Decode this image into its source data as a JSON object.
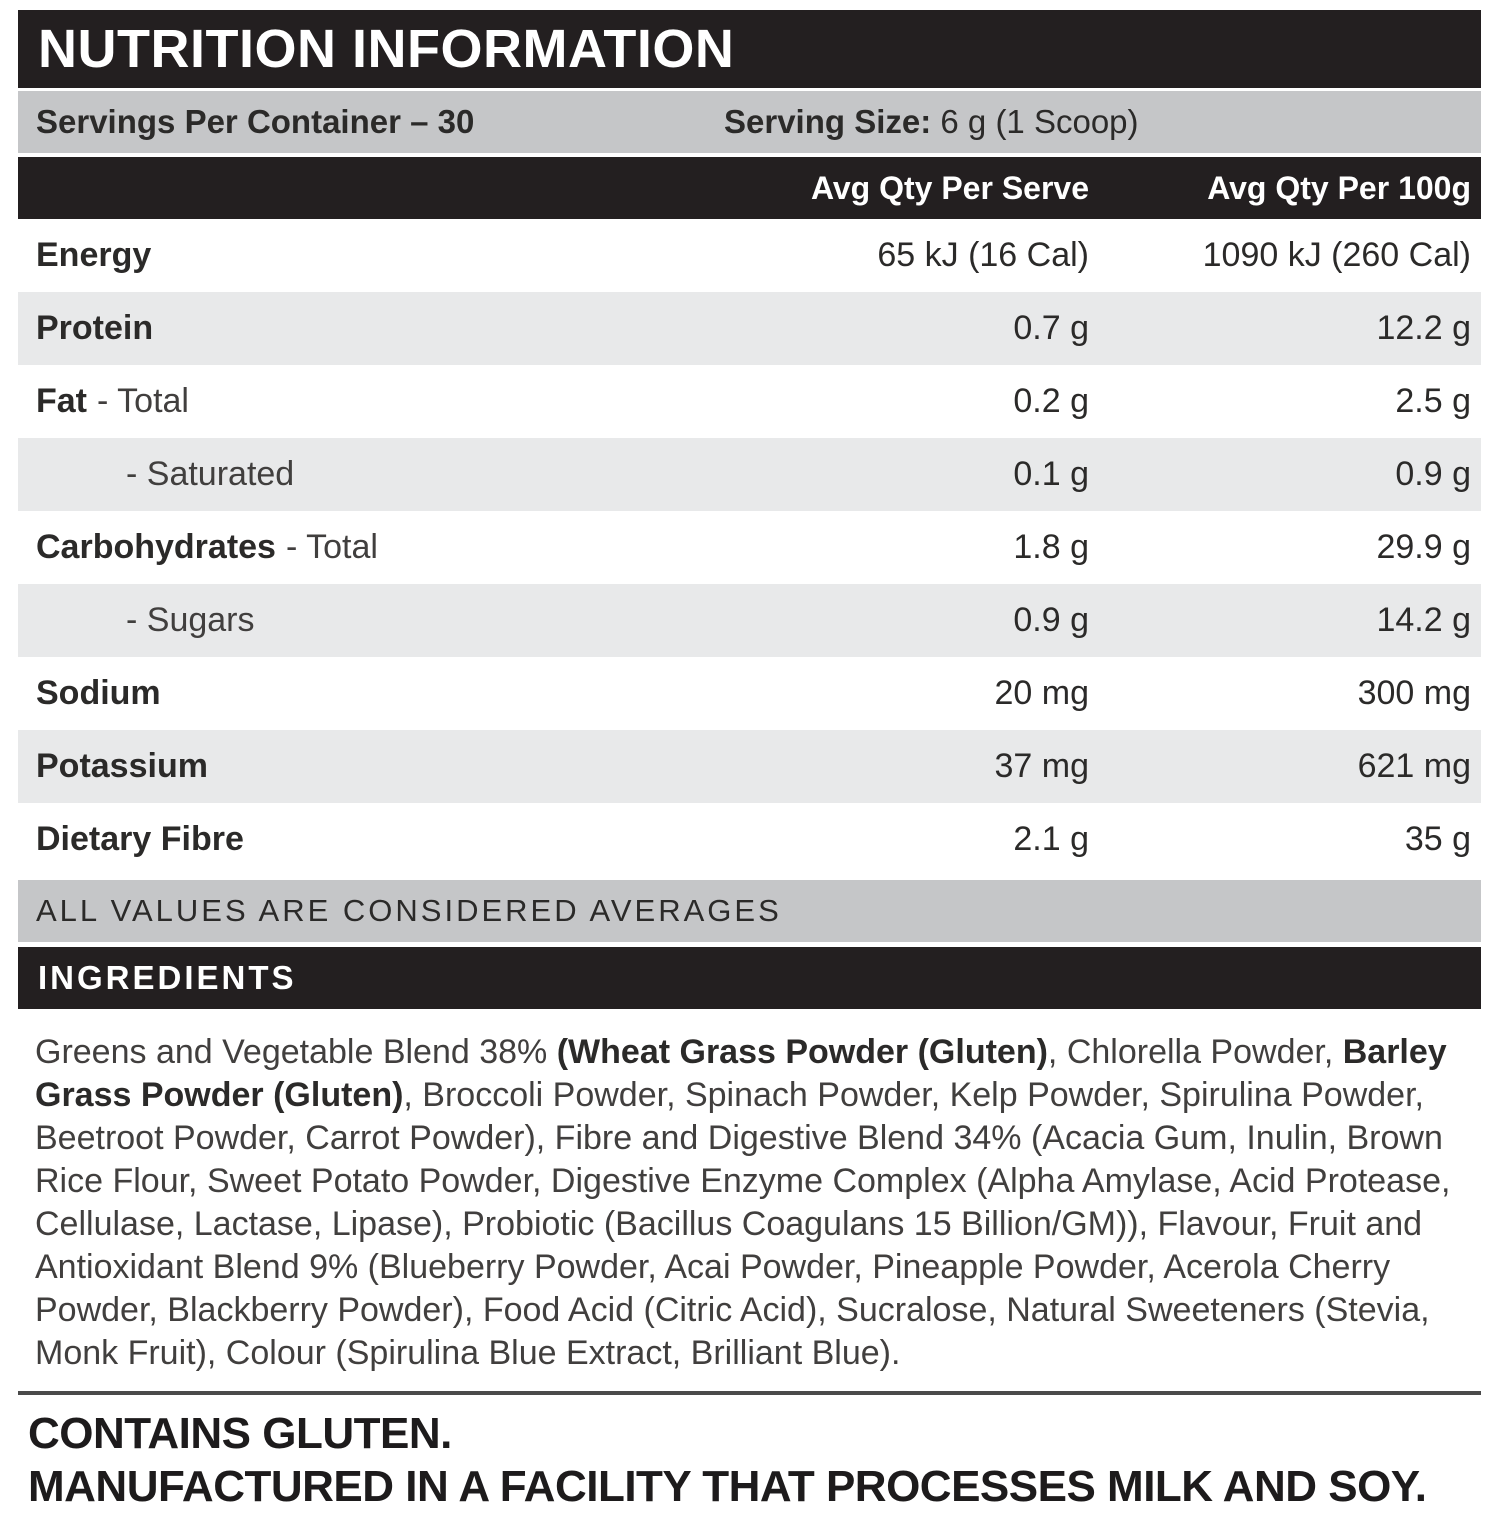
{
  "header": {
    "title": "NUTRITION INFORMATION"
  },
  "serving": {
    "servings_per_container": "Servings Per Container – 30",
    "serving_size_label": "Serving Size:",
    "serving_size_value": " 6 g (1 Scoop)"
  },
  "table": {
    "col_serve": "Avg Qty Per Serve",
    "col_100g": "Avg Qty Per 100g",
    "rows": [
      {
        "name": "Energy",
        "sub": "",
        "per_serve": "65 kJ (16 Cal)",
        "per_100g": "1090 kJ (260 Cal)"
      },
      {
        "name": "Protein",
        "sub": "",
        "per_serve": "0.7 g",
        "per_100g": "12.2 g"
      },
      {
        "name": "Fat",
        "sub": "- Total",
        "per_serve": "0.2 g",
        "per_100g": "2.5 g"
      },
      {
        "name": "",
        "sub": "- Saturated",
        "per_serve": "0.1 g",
        "per_100g": "0.9 g"
      },
      {
        "name": "Carbohydrates",
        "sub": "- Total",
        "per_serve": "1.8 g",
        "per_100g": "29.9 g"
      },
      {
        "name": "",
        "sub": "- Sugars",
        "per_serve": "0.9 g",
        "per_100g": "14.2 g"
      },
      {
        "name": "Sodium",
        "sub": "",
        "per_serve": "20 mg",
        "per_100g": "300 mg"
      },
      {
        "name": "Potassium",
        "sub": "",
        "per_serve": "37 mg",
        "per_100g": "621 mg"
      },
      {
        "name": "Dietary Fibre",
        "sub": "",
        "per_serve": "2.1 g",
        "per_100g": "35 g"
      }
    ]
  },
  "averages_note": "ALL VALUES ARE CONSIDERED AVERAGES",
  "ingredients": {
    "heading": "INGREDIENTS",
    "segments": [
      {
        "text": "Greens and Vegetable Blend 38% ",
        "bold": false
      },
      {
        "text": "(Wheat Grass Powder (Gluten)",
        "bold": true
      },
      {
        "text": ", Chlorella Powder, ",
        "bold": false
      },
      {
        "text": "Barley Grass Powder (Gluten)",
        "bold": true
      },
      {
        "text": ", Broccoli Powder, Spinach Powder, Kelp Powder, Spirulina Powder, Beetroot Powder, Carrot Powder), Fibre and Digestive Blend 34% (Acacia Gum, Inulin, Brown Rice Flour, Sweet Potato Powder, Digestive Enzyme Complex (Alpha Amylase, Acid Protease, Cellulase, Lactase, Lipase), Probiotic (Bacillus Coagulans 15 Billion/GM)), Flavour, Fruit and Antioxidant Blend 9% (Blueberry Powder, Acai Powder, Pineapple Powder, Acerola Cherry Powder, Blackberry Powder), Food Acid (Citric Acid), Sucralose, Natural Sweeteners (Stevia, Monk Fruit), Colour (Spirulina Blue Extract, Brilliant Blue).",
        "bold": false
      }
    ]
  },
  "footer": {
    "line1": "CONTAINS GLUTEN.",
    "line2": "MANUFACTURED IN A FACILITY THAT PROCESSES MILK AND SOY."
  },
  "colors": {
    "black": "#231f20",
    "bar_gray": "#c5c6c8",
    "row_gray": "#e8e9ea"
  }
}
